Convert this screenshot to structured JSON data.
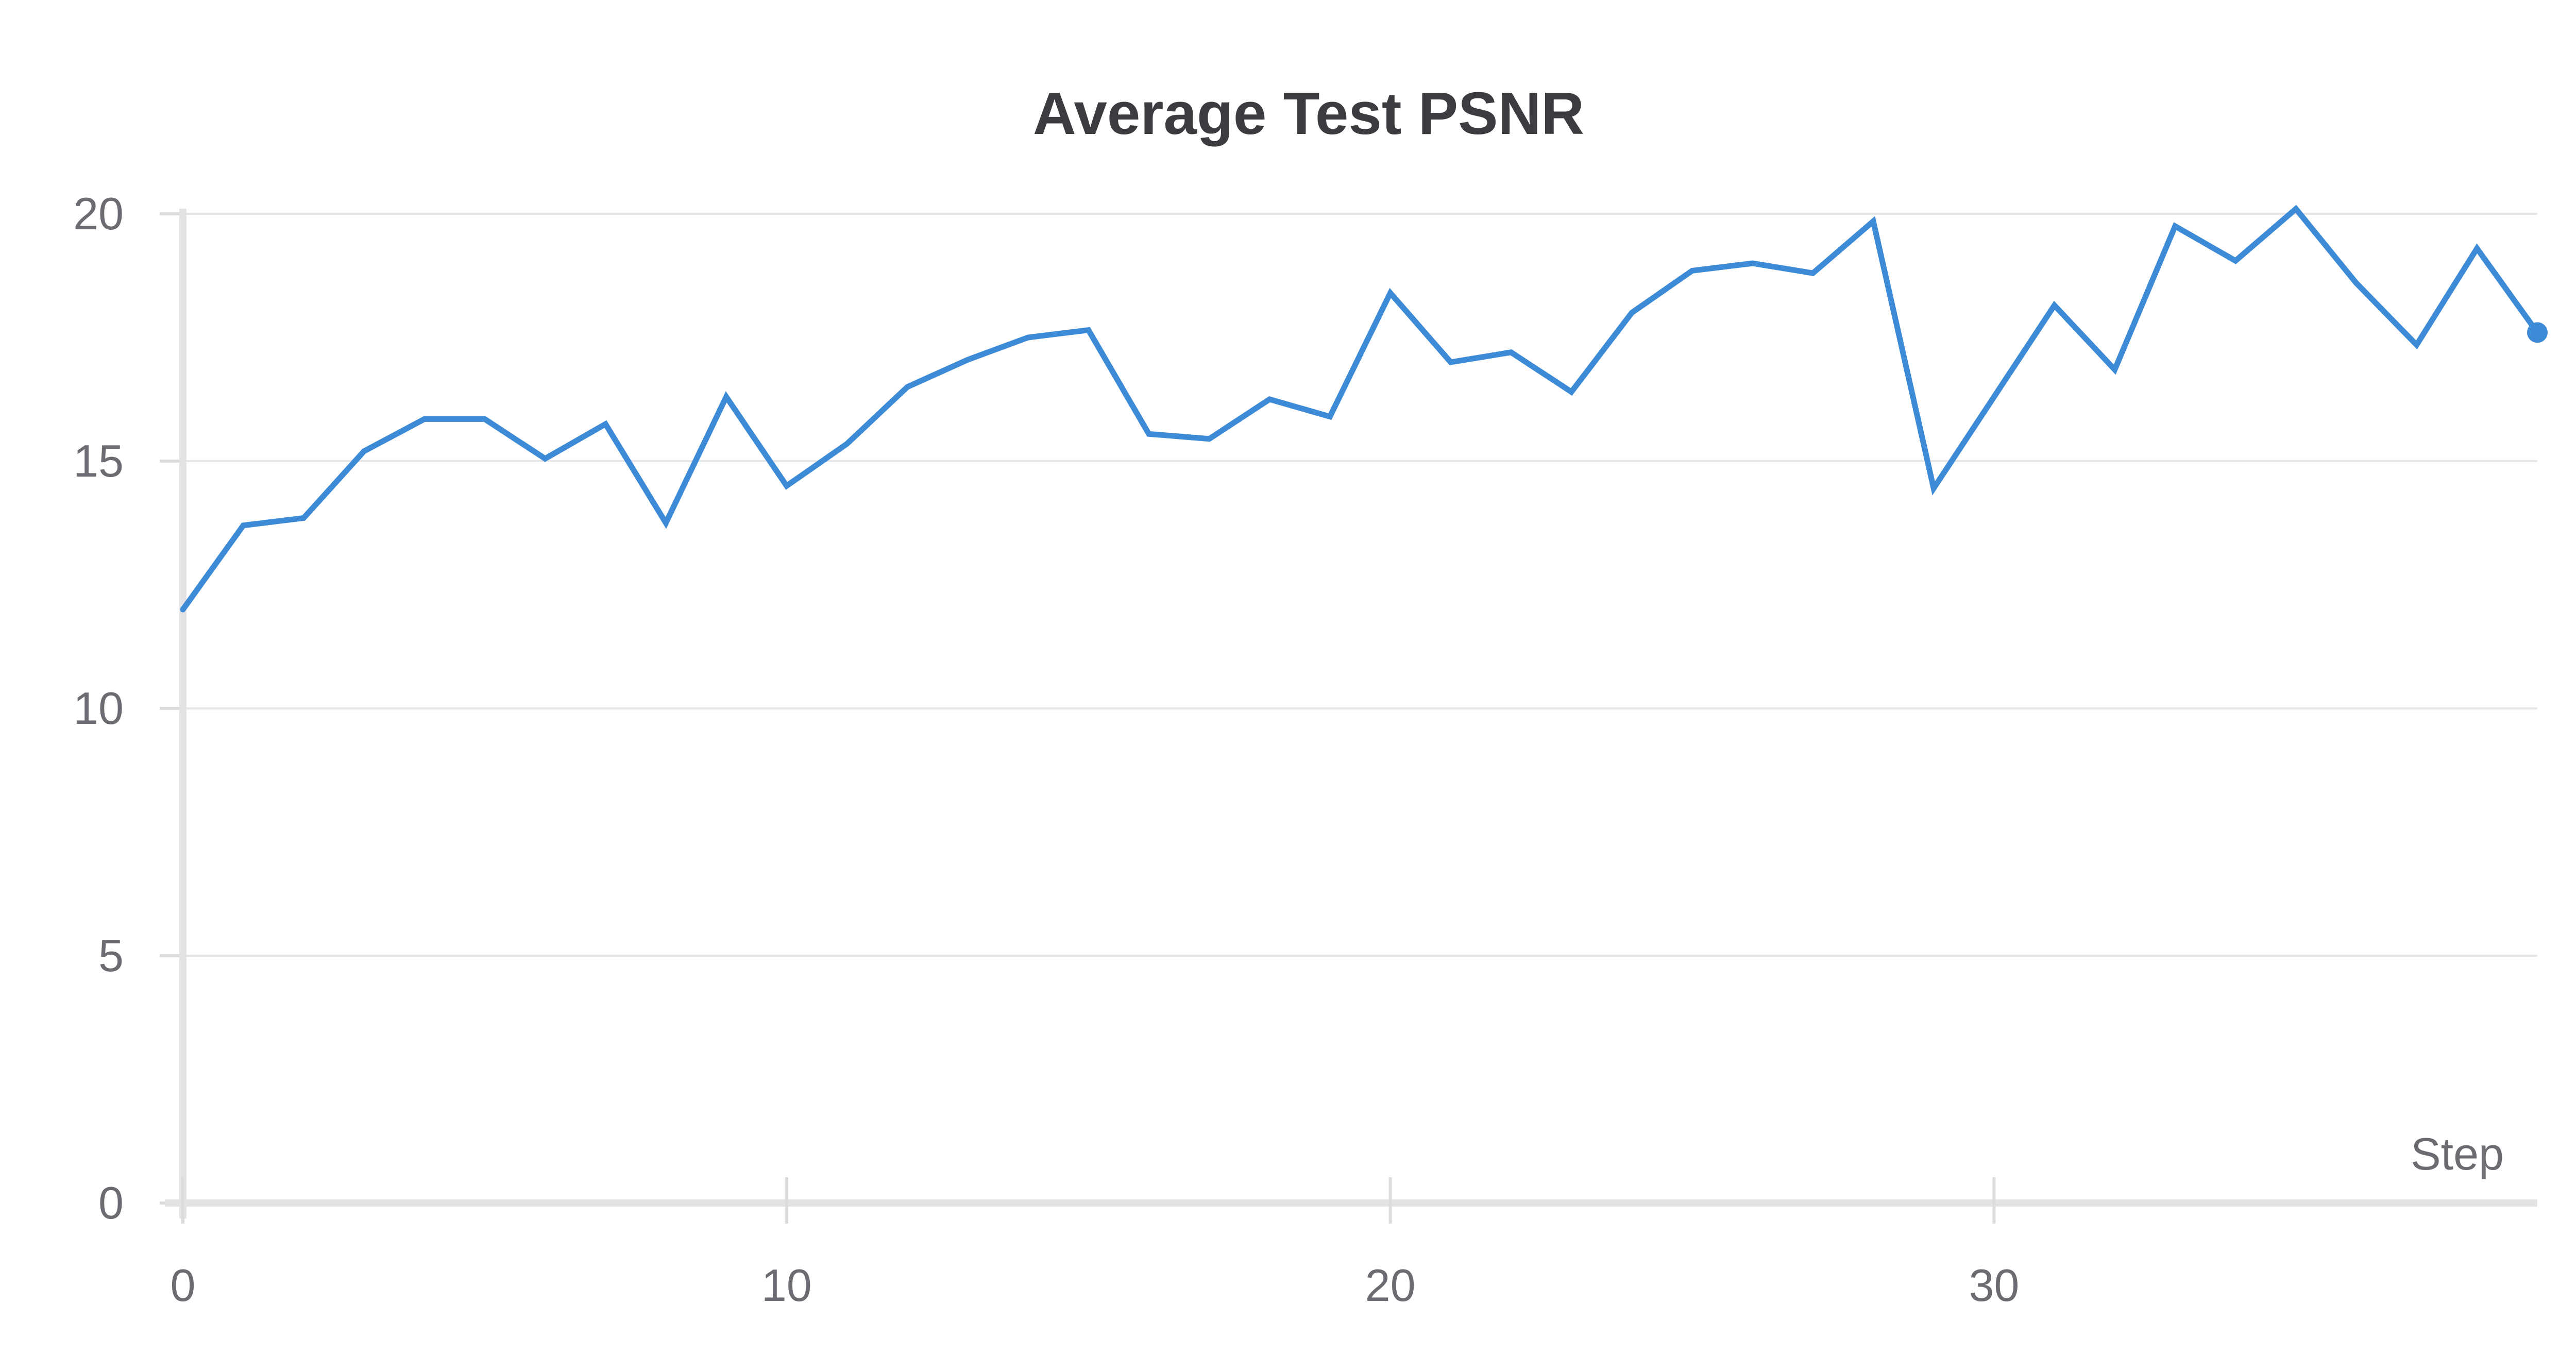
{
  "chart_data": {
    "type": "line",
    "title": "Average Test PSNR",
    "xlabel": "Step",
    "ylabel": "",
    "xlim": [
      0,
      39
    ],
    "ylim": [
      0,
      20
    ],
    "x_ticks": [
      0,
      10,
      20,
      30
    ],
    "y_ticks": [
      0,
      5,
      10,
      15,
      20
    ],
    "grid": true,
    "legend": "none",
    "series": [
      {
        "color": "#3d8bd6",
        "x": [
          0,
          1,
          2,
          3,
          4,
          5,
          6,
          7,
          8,
          9,
          10,
          11,
          12,
          13,
          14,
          15,
          16,
          17,
          18,
          19,
          20,
          21,
          22,
          23,
          24,
          25,
          26,
          27,
          28,
          29,
          30,
          31,
          32,
          33,
          34,
          35,
          36,
          37,
          38,
          39
        ],
        "y": [
          12.0,
          13.7,
          13.85,
          15.2,
          15.85,
          15.85,
          15.05,
          15.75,
          13.75,
          16.3,
          14.5,
          15.35,
          16.5,
          17.05,
          17.5,
          17.65,
          15.55,
          15.45,
          16.25,
          15.9,
          18.4,
          17.0,
          17.2,
          16.4,
          18.0,
          18.85,
          19.0,
          18.8,
          19.85,
          14.45,
          16.3,
          18.15,
          16.85,
          19.75,
          19.05,
          20.1,
          18.6,
          17.35,
          19.3,
          17.6
        ]
      }
    ]
  }
}
